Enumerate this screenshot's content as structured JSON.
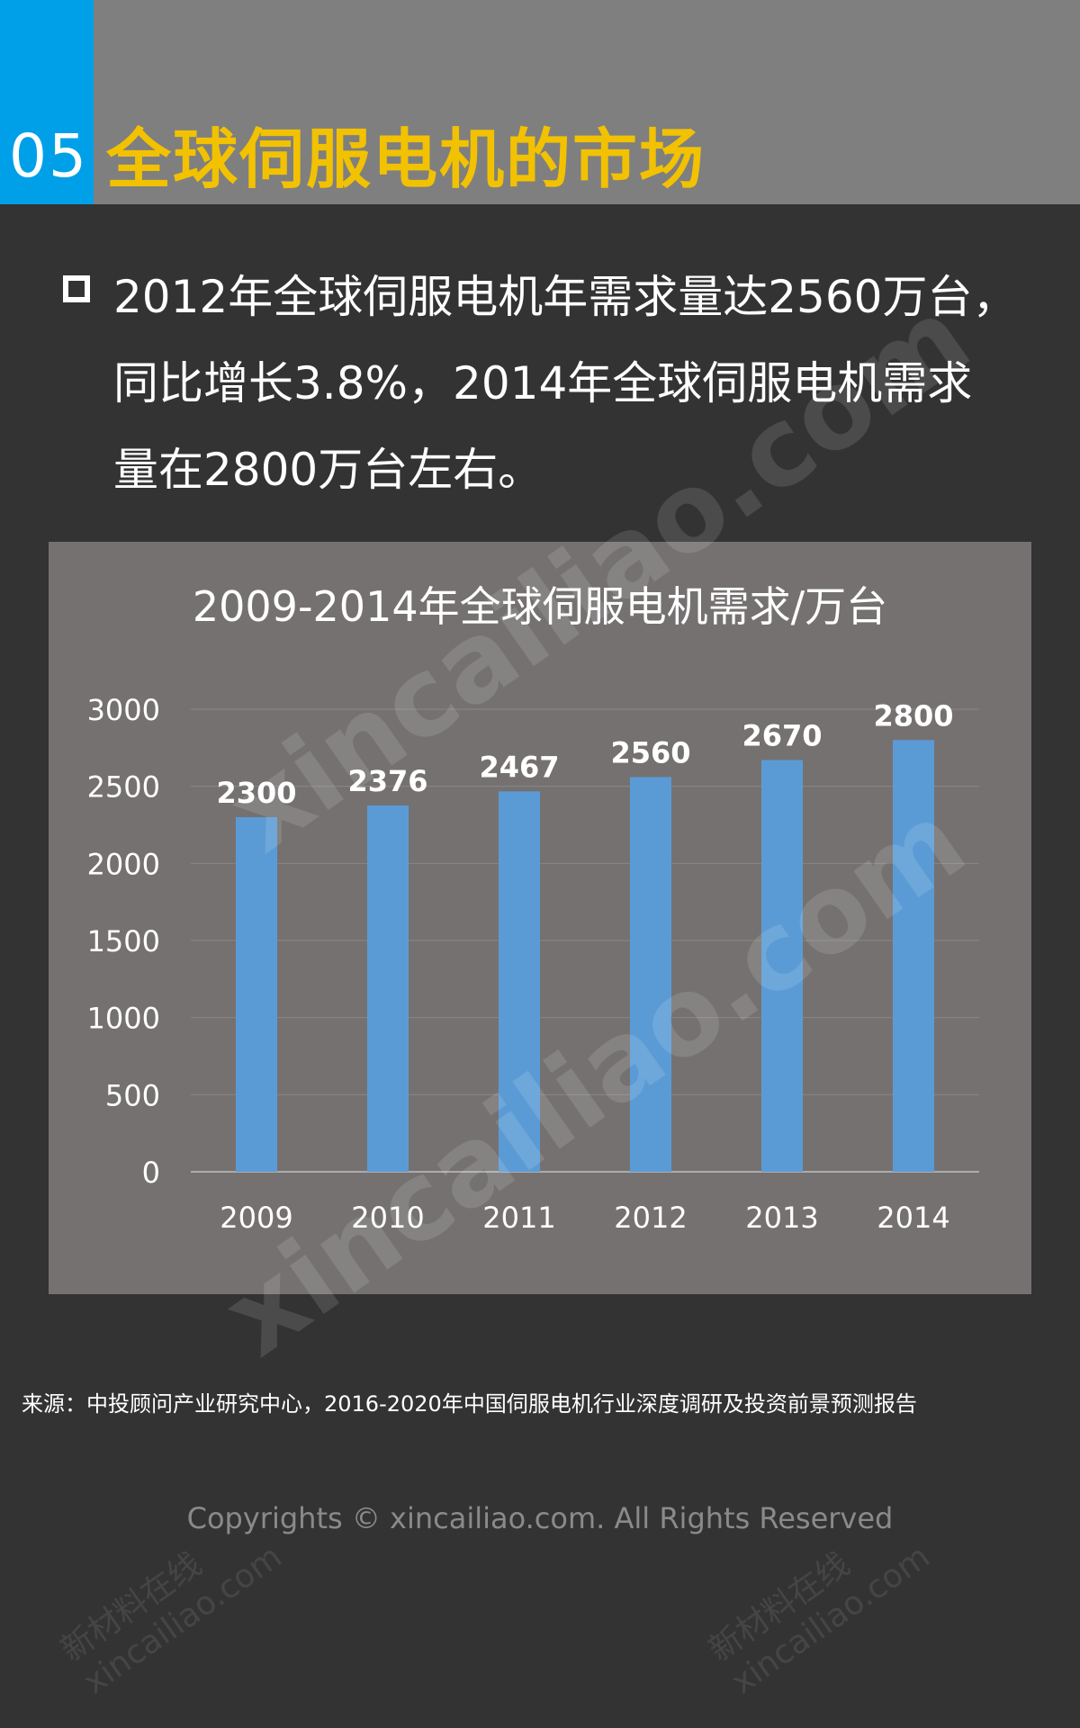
{
  "header": {
    "section_number": "05",
    "title": "全球伺服电机的市场",
    "accent_color": "#00a0e9",
    "title_color": "#f2c200"
  },
  "intro": {
    "text": "2012年全球伺服电机年需求量达2560万台，\n同比增长3.8%，2014年全球伺服电机需求\n量在2800万台左右。",
    "bullet_icon": "hollow-square-icon"
  },
  "chart_data": {
    "type": "bar",
    "title": "2009-2014年全球伺服电机需求/万台",
    "categories": [
      "2009",
      "2010",
      "2011",
      "2012",
      "2013",
      "2014"
    ],
    "values": [
      2300,
      2376,
      2467,
      2560,
      2670,
      2800
    ],
    "xlabel": "",
    "ylabel": "",
    "ylim": [
      0,
      3000
    ],
    "yticks": [
      "0",
      "500",
      "1000",
      "1500",
      "2000",
      "2500",
      "3000"
    ],
    "grid": true,
    "bar_color": "#5b9bd5",
    "data_labels": true
  },
  "source": "来源：中投顾问产业研究中心，2016-2020年中国伺服电机行业深度调研及投资前景预测报告",
  "copyright": "Copyrights © xincailiao.com. All Rights Reserved",
  "watermark": {
    "main": "xincailiao.com",
    "small_line1": "新材料在线",
    "small_line2": "xincailiao.com"
  }
}
